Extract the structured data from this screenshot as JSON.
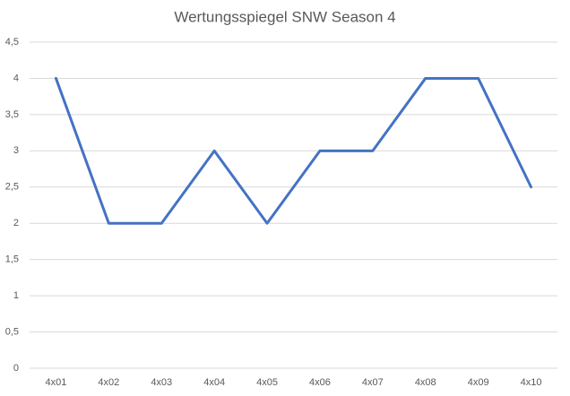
{
  "chart_data": {
    "type": "line",
    "title": "Wertungsspiegel SNW Season 4",
    "categories": [
      "4x01",
      "4x02",
      "4x03",
      "4x04",
      "4x05",
      "4x06",
      "4x07",
      "4x08",
      "4x09",
      "4x10"
    ],
    "values": [
      4,
      2,
      2,
      3,
      2,
      3,
      3,
      4,
      4,
      2.5
    ],
    "color": "#4472c4",
    "ylim": [
      0,
      4.5
    ],
    "yticks": [
      0,
      {
        "value": 0.5,
        "label": "0,5"
      },
      1,
      {
        "value": 1.5,
        "label": "1,5"
      },
      2,
      {
        "value": 2.5,
        "label": "2,5"
      },
      3,
      {
        "value": 3.5,
        "label": "3,5"
      },
      4,
      {
        "value": 4.5,
        "label": "4,5"
      }
    ],
    "grid": true
  }
}
